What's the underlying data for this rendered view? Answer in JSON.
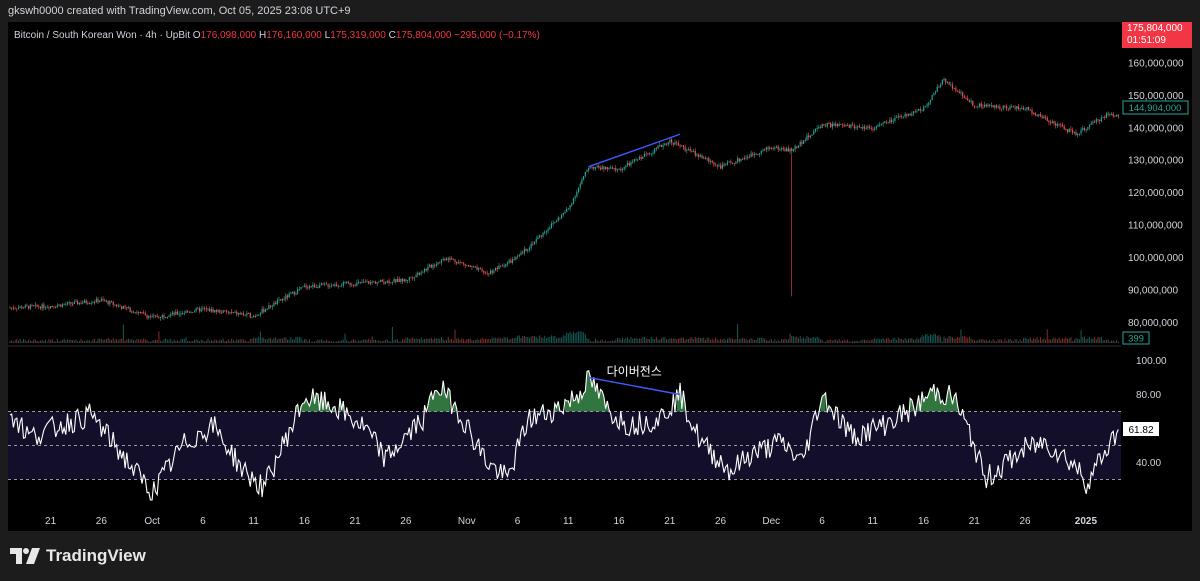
{
  "header": {
    "text": "gkswh0000 created with TradingView.com, Oct 05, 2025 23:08 UTC+9"
  },
  "legend": {
    "title": "Bitcoin / South Korean Won · 4h · UpBit",
    "o_label": "O",
    "o_value": "176,098,000",
    "h_label": "H",
    "h_value": "176,160,000",
    "l_label": "L",
    "l_value": "175,319,000",
    "c_label": "C",
    "c_value": "175,804,000",
    "change": "−295,000 (−0.17%)"
  },
  "badges": {
    "last_price": "175,804,000",
    "countdown": "01:51:09",
    "cursor_price": "144,904,000",
    "volume": "399",
    "rsi_value": "61.82"
  },
  "annotation": {
    "text": "다이버전스"
  },
  "footer": {
    "brand": "TradingView"
  },
  "colors": {
    "up": "#26a69a",
    "down": "#ef5350",
    "rsi_line": "#ffffff",
    "divergence": "#3d5afe",
    "rsi_zone": "#130f2b",
    "rsi_fill": "#3a8a4a"
  },
  "chart_data": [
    {
      "type": "candlestick",
      "title": "Bitcoin / South Korean Won · 4h · UpBit",
      "y_axis_ticks": [
        "160,000,000",
        "150,000,000",
        "140,000,000",
        "130,000,000",
        "120,000,000",
        "110,000,000",
        "100,000,000",
        "90,000,000",
        "80,000,000"
      ],
      "ylim": [
        77000000,
        164000000
      ],
      "x_axis_ticks": [
        "21",
        "26",
        "Oct",
        "6",
        "11",
        "16",
        "21",
        "26",
        "Nov",
        "6",
        "11",
        "16",
        "21",
        "26",
        "Dec",
        "6",
        "11",
        "16",
        "21",
        "26",
        "2025"
      ],
      "close_path": [
        {
          "x": "Sep 17",
          "y": 84500000
        },
        {
          "x": "Sep 21",
          "y": 85000000
        },
        {
          "x": "Sep 26",
          "y": 86800000
        },
        {
          "x": "Oct 1",
          "y": 81500000
        },
        {
          "x": "Oct 6",
          "y": 84000000
        },
        {
          "x": "Oct 11",
          "y": 82000000
        },
        {
          "x": "Oct 16",
          "y": 91000000
        },
        {
          "x": "Oct 21",
          "y": 92000000
        },
        {
          "x": "Oct 26",
          "y": 93000000
        },
        {
          "x": "Oct 30",
          "y": 100000000
        },
        {
          "x": "Nov 3",
          "y": 95000000
        },
        {
          "x": "Nov 6",
          "y": 100000000
        },
        {
          "x": "Nov 11",
          "y": 115000000
        },
        {
          "x": "Nov 13",
          "y": 128000000
        },
        {
          "x": "Nov 16",
          "y": 127000000
        },
        {
          "x": "Nov 21",
          "y": 136000000
        },
        {
          "x": "Nov 26",
          "y": 128000000
        },
        {
          "x": "Dec 1",
          "y": 134000000
        },
        {
          "x": "Dec 3",
          "y": 133000000
        },
        {
          "x": "Dec 6",
          "y": 141000000
        },
        {
          "x": "Dec 11",
          "y": 140000000
        },
        {
          "x": "Dec 16",
          "y": 146000000
        },
        {
          "x": "Dec 18",
          "y": 155000000
        },
        {
          "x": "Dec 21",
          "y": 147000000
        },
        {
          "x": "Dec 26",
          "y": 146000000
        },
        {
          "x": "Dec 31",
          "y": 138000000
        },
        {
          "x": "Jan 3",
          "y": 144000000
        }
      ],
      "spike_low": {
        "x": "Dec 3",
        "y": 88000000
      },
      "divergence_line": [
        {
          "x": "Nov 13",
          "y": 128000000
        },
        {
          "x": "Nov 22",
          "y": 138000000
        }
      ]
    },
    {
      "type": "line",
      "title": "RSI",
      "y_axis_ticks": [
        "100.00",
        "80.00",
        "40.00"
      ],
      "ylim": [
        5,
        105
      ],
      "bands": [
        70,
        50,
        30
      ],
      "x_axis_ticks": [
        "21",
        "26",
        "Oct",
        "6",
        "11",
        "16",
        "21",
        "26",
        "Nov",
        "6",
        "11",
        "16",
        "21",
        "26",
        "Dec",
        "6",
        "11",
        "16",
        "21",
        "26",
        "2025"
      ],
      "anchors": [
        {
          "x": "Sep 17",
          "y": 70
        },
        {
          "x": "Sep 19",
          "y": 55
        },
        {
          "x": "Sep 22",
          "y": 62
        },
        {
          "x": "Sep 25",
          "y": 68
        },
        {
          "x": "Sep 28",
          "y": 45
        },
        {
          "x": "Oct 1",
          "y": 22
        },
        {
          "x": "Oct 4",
          "y": 50
        },
        {
          "x": "Oct 7",
          "y": 62
        },
        {
          "x": "Oct 10",
          "y": 35
        },
        {
          "x": "Oct 12",
          "y": 25
        },
        {
          "x": "Oct 15",
          "y": 65
        },
        {
          "x": "Oct 16",
          "y": 78
        },
        {
          "x": "Oct 19",
          "y": 73
        },
        {
          "x": "Oct 22",
          "y": 60
        },
        {
          "x": "Oct 24",
          "y": 42
        },
        {
          "x": "Oct 26",
          "y": 55
        },
        {
          "x": "Oct 28",
          "y": 68
        },
        {
          "x": "Oct 29",
          "y": 86
        },
        {
          "x": "Oct 31",
          "y": 72
        },
        {
          "x": "Nov 3",
          "y": 40
        },
        {
          "x": "Nov 5",
          "y": 30
        },
        {
          "x": "Nov 7",
          "y": 65
        },
        {
          "x": "Nov 10",
          "y": 72
        },
        {
          "x": "Nov 12",
          "y": 80
        },
        {
          "x": "Nov 13",
          "y": 90
        },
        {
          "x": "Nov 15",
          "y": 70
        },
        {
          "x": "Nov 17",
          "y": 62
        },
        {
          "x": "Nov 20",
          "y": 66
        },
        {
          "x": "Nov 22",
          "y": 80
        },
        {
          "x": "Nov 24",
          "y": 52
        },
        {
          "x": "Nov 27",
          "y": 35
        },
        {
          "x": "Nov 29",
          "y": 45
        },
        {
          "x": "Dec 2",
          "y": 52
        },
        {
          "x": "Dec 4",
          "y": 40
        },
        {
          "x": "Dec 6",
          "y": 80
        },
        {
          "x": "Dec 9",
          "y": 55
        },
        {
          "x": "Dec 12",
          "y": 62
        },
        {
          "x": "Dec 15",
          "y": 72
        },
        {
          "x": "Dec 17",
          "y": 82
        },
        {
          "x": "Dec 19",
          "y": 78
        },
        {
          "x": "Dec 21",
          "y": 50
        },
        {
          "x": "Dec 22",
          "y": 30
        },
        {
          "x": "Dec 26",
          "y": 48
        },
        {
          "x": "Dec 28",
          "y": 52
        },
        {
          "x": "Dec 31",
          "y": 38
        },
        {
          "x": "Jan 1",
          "y": 28
        },
        {
          "x": "Jan 4",
          "y": 58
        },
        {
          "x": "Jan 5",
          "y": 62
        }
      ],
      "divergence_line": [
        {
          "x": "Nov 13",
          "y": 90
        },
        {
          "x": "Nov 22",
          "y": 80
        }
      ],
      "annotation": "다이버전스",
      "last_value": 61.82
    }
  ]
}
